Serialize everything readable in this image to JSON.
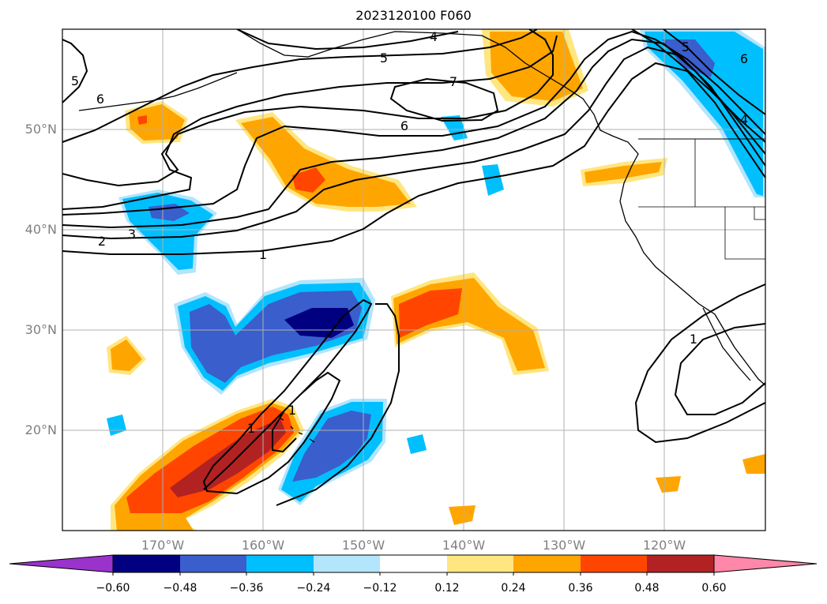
{
  "title": "2023120100 F060",
  "map": {
    "lon_range": [
      -180,
      -110
    ],
    "lat_range": [
      10,
      60
    ],
    "lat_labels": [
      "50°N",
      "40°N",
      "30°N",
      "20°N"
    ],
    "lon_labels": [
      "170°W",
      "160°W",
      "150°W",
      "140°W",
      "130°W",
      "120°W"
    ],
    "contour_labels": [
      "4",
      "5",
      "7",
      "6",
      "5",
      "6",
      "3",
      "2",
      "1",
      "1",
      "1",
      "1",
      "6",
      "5",
      "4"
    ],
    "contour_field_levels": [
      1,
      2,
      3,
      4,
      5,
      6,
      7
    ]
  },
  "colorbar": {
    "ticks": [
      "−0.60",
      "−0.48",
      "−0.36",
      "−0.24",
      "−0.12",
      "0.12",
      "0.24",
      "0.36",
      "0.48",
      "0.60"
    ],
    "colors": [
      "#9933cc",
      "#000080",
      "#3a5ecc",
      "#00bfff",
      "#b3e5fc",
      "#ffffff",
      "#ffe680",
      "#ffa500",
      "#ff4500",
      "#b22222",
      "#ff88aa"
    ],
    "extend": "both"
  },
  "colors": {
    "contour": "#000000",
    "grid": "#b0b0b0",
    "axis_label": "#808080"
  }
}
